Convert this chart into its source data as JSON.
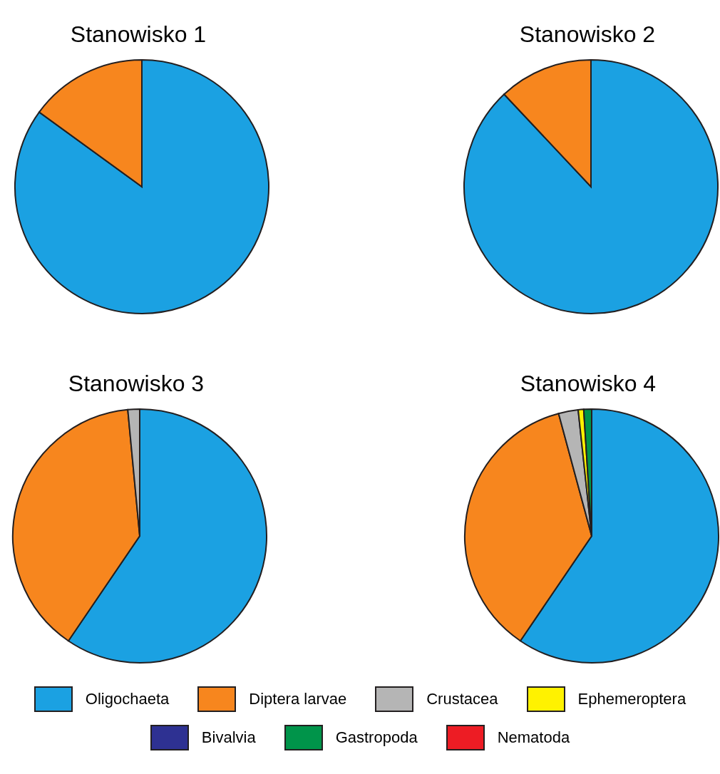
{
  "chart_data": {
    "type": "pie",
    "categories": [
      "Oligochaeta",
      "Diptera larvae",
      "Crustacea",
      "Ephemeroptera",
      "Bivalvia",
      "Gastropoda",
      "Nematoda"
    ],
    "colors": [
      "#1ba1e2",
      "#f7861e",
      "#b5b5b5",
      "#fff200",
      "#2e3192",
      "#00944a",
      "#ed1c24"
    ],
    "legend": "bottom",
    "series": [
      {
        "name": "Stanowisko 1",
        "values": [
          85,
          15,
          0,
          0,
          0,
          0,
          0
        ]
      },
      {
        "name": "Stanowisko 2",
        "values": [
          88,
          12,
          0,
          0,
          0,
          0,
          0
        ]
      },
      {
        "name": "Stanowisko 3",
        "values": [
          59.5,
          39,
          1.5,
          0,
          0,
          0,
          0
        ]
      },
      {
        "name": "Stanowisko 4",
        "values": [
          59.5,
          36.3,
          2.5,
          0.7,
          0,
          1,
          0
        ]
      }
    ]
  }
}
